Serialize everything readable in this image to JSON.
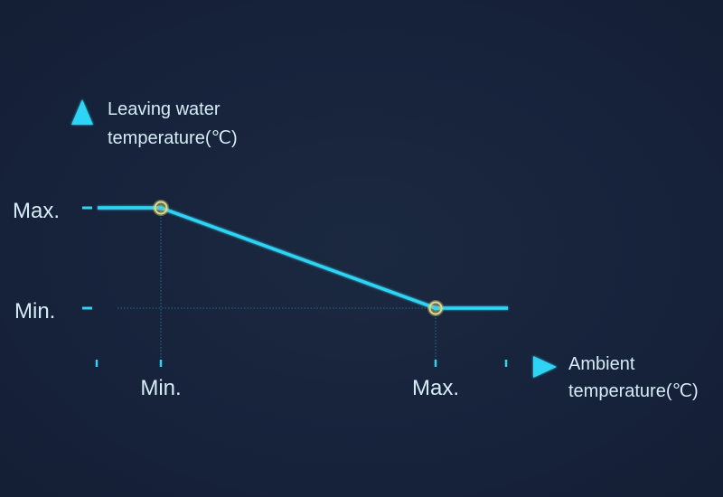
{
  "y_axis": {
    "title_line1": "Leaving water",
    "title_line2": "temperature(℃)",
    "tick_max": "Max.",
    "tick_min": "Min."
  },
  "x_axis": {
    "title_line1": "Ambient",
    "title_line2": "temperature(℃)",
    "tick_min": "Min.",
    "tick_max": "Max."
  },
  "colors": {
    "background": "#17233a",
    "line": "#2fd4f4",
    "marker": "#e0d98a",
    "text": "#d6ecf7"
  },
  "icons": {
    "y_arrow": "arrow-up-icon",
    "x_arrow": "arrow-right-icon"
  }
}
